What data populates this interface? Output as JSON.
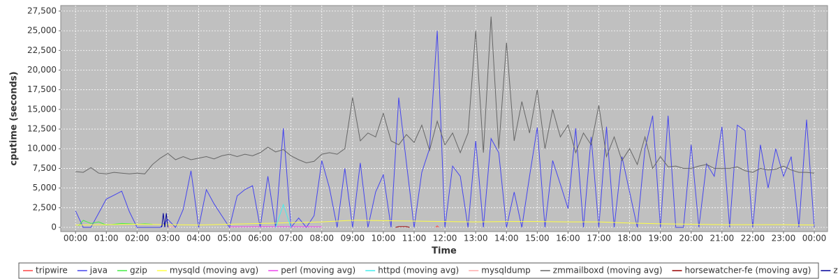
{
  "chart_data": {
    "type": "line",
    "x_label": "Time",
    "y_label": "cputime (seconds)",
    "xlim": [
      -0.48,
      24.43
    ],
    "ylim": [
      -530,
      28200
    ],
    "xticks": [
      {
        "value": 0,
        "label": "00:00"
      },
      {
        "value": 1,
        "label": "01:00"
      },
      {
        "value": 2,
        "label": "02:00"
      },
      {
        "value": 3,
        "label": "03:00"
      },
      {
        "value": 4,
        "label": "04:00"
      },
      {
        "value": 5,
        "label": "05:00"
      },
      {
        "value": 6,
        "label": "06:00"
      },
      {
        "value": 7,
        "label": "07:00"
      },
      {
        "value": 8,
        "label": "08:00"
      },
      {
        "value": 9,
        "label": "09:00"
      },
      {
        "value": 10,
        "label": "10:00"
      },
      {
        "value": 11,
        "label": "11:00"
      },
      {
        "value": 12,
        "label": "12:00"
      },
      {
        "value": 13,
        "label": "13:00"
      },
      {
        "value": 14,
        "label": "14:00"
      },
      {
        "value": 15,
        "label": "15:00"
      },
      {
        "value": 16,
        "label": "16:00"
      },
      {
        "value": 17,
        "label": "17:00"
      },
      {
        "value": 18,
        "label": "18:00"
      },
      {
        "value": 19,
        "label": "19:00"
      },
      {
        "value": 20,
        "label": "20:00"
      },
      {
        "value": 21,
        "label": "21:00"
      },
      {
        "value": 22,
        "label": "22:00"
      },
      {
        "value": 23,
        "label": "23:00"
      },
      {
        "value": 24,
        "label": "00:00"
      }
    ],
    "yticks": [
      0,
      {
        "value": 2500,
        "label": "2,500"
      },
      {
        "value": 5000,
        "label": "5,000"
      },
      {
        "value": 7500,
        "label": "7,500"
      },
      {
        "value": 10000,
        "label": "10,000"
      },
      {
        "value": 12500,
        "label": "12,500"
      },
      {
        "value": 15000,
        "label": "15,000"
      },
      {
        "value": 17500,
        "label": "17,500"
      },
      {
        "value": 20000,
        "label": "20,000"
      },
      {
        "value": 22500,
        "label": "22,500"
      },
      {
        "value": 25000,
        "label": "25,000"
      },
      {
        "value": 27500,
        "label": "27,500"
      }
    ],
    "grid": true,
    "series": [
      {
        "name": "tripwire",
        "color": "#ff4444",
        "x": [
          11.7,
          11.75,
          11.8
        ],
        "values": [
          0,
          200,
          0
        ]
      },
      {
        "name": "java",
        "color": "#4444ee",
        "x": [
          0,
          0.25,
          0.5,
          0.75,
          1,
          1.25,
          1.5,
          1.75,
          2,
          2.25,
          2.5,
          2.75,
          3,
          3.25,
          3.5,
          3.75,
          4,
          4.25,
          4.5,
          4.75,
          5,
          5.25,
          5.5,
          5.75,
          6,
          6.25,
          6.5,
          6.75,
          7,
          7.25,
          7.5,
          7.75,
          8,
          8.25,
          8.5,
          8.75,
          9,
          9.25,
          9.5,
          9.75,
          10,
          10.25,
          10.5,
          10.75,
          11,
          11.25,
          11.5,
          11.75,
          12,
          12.25,
          12.5,
          12.75,
          13,
          13.25,
          13.5,
          13.75,
          14,
          14.25,
          14.5,
          14.75,
          15,
          15.25,
          15.5,
          15.75,
          16,
          16.25,
          16.5,
          16.75,
          17,
          17.25,
          17.5,
          17.75,
          18,
          18.25,
          18.5,
          18.75,
          19,
          19.25,
          19.5,
          19.75,
          20,
          20.25,
          20.5,
          20.75,
          21,
          21.25,
          21.5,
          21.75,
          22,
          22.25,
          22.5,
          22.75,
          23,
          23.25,
          23.5,
          23.75,
          24
        ],
        "values": [
          2100,
          0,
          0,
          1800,
          3600,
          4100,
          4600,
          2000,
          0,
          0,
          0,
          0,
          1000,
          0,
          2300,
          7200,
          0,
          4800,
          3000,
          1500,
          0,
          4000,
          4800,
          5300,
          0,
          6500,
          0,
          12600,
          0,
          1200,
          0,
          1500,
          8500,
          5000,
          0,
          7500,
          0,
          8200,
          0,
          4500,
          6700,
          0,
          16500,
          8200,
          0,
          7000,
          10000,
          25000,
          0,
          7800,
          6500,
          0,
          11000,
          0,
          11300,
          9500,
          0,
          4500,
          0,
          6500,
          12700,
          0,
          8500,
          5500,
          2400,
          12600,
          0,
          11500,
          0,
          12800,
          0,
          9000,
          4500,
          0,
          10000,
          14200,
          0,
          14200,
          0,
          0,
          10500,
          0,
          8100,
          6500,
          12800,
          0,
          13000,
          12300,
          0,
          10500,
          5000,
          10000,
          6500,
          9000,
          0,
          13700,
          0
        ]
      },
      {
        "name": "gzip",
        "color": "#44ee44",
        "x": [
          0.1,
          0.25,
          0.5,
          0.75,
          1,
          1.25,
          1.5,
          1.75,
          2,
          2.25,
          2.5
        ],
        "values": [
          200,
          900,
          500,
          700,
          300,
          400,
          500,
          450,
          400,
          450,
          400
        ]
      },
      {
        "name": "mysqld (moving avg)",
        "color": "#ffff44",
        "x": [
          0,
          1,
          2,
          3,
          4,
          5,
          6,
          7,
          8,
          9,
          10,
          11,
          12,
          13,
          14,
          15,
          16,
          17,
          18,
          19,
          20,
          21,
          22,
          23,
          24
        ],
        "values": [
          300,
          350,
          400,
          350,
          300,
          400,
          500,
          600,
          700,
          900,
          850,
          800,
          750,
          700,
          750,
          750,
          700,
          700,
          550,
          450,
          400,
          350,
          350,
          350,
          300
        ]
      },
      {
        "name": "perl (moving avg)",
        "color": "#ee44ee",
        "x": [
          5,
          6,
          7,
          8
        ],
        "values": [
          80,
          100,
          90,
          80
        ]
      },
      {
        "name": "httpd (moving avg)",
        "color": "#44eeee",
        "x": [
          6.5,
          6.75,
          7
        ],
        "values": [
          0,
          2900,
          0
        ]
      },
      {
        "name": "mysqldump",
        "color": "#ffaaaa",
        "x": [
          3,
          3.1,
          3.2
        ],
        "values": [
          0,
          150,
          0
        ]
      },
      {
        "name": "zmmailboxd (moving avg)",
        "color": "#666666",
        "x": [
          0,
          0.25,
          0.5,
          0.75,
          1,
          1.25,
          1.5,
          1.75,
          2,
          2.25,
          2.5,
          2.75,
          3,
          3.25,
          3.5,
          3.75,
          4,
          4.25,
          4.5,
          4.75,
          5,
          5.25,
          5.5,
          5.75,
          6,
          6.25,
          6.5,
          6.75,
          7,
          7.25,
          7.5,
          7.75,
          8,
          8.25,
          8.5,
          8.75,
          9,
          9.25,
          9.5,
          9.75,
          10,
          10.25,
          10.5,
          10.75,
          11,
          11.25,
          11.5,
          11.75,
          12,
          12.25,
          12.5,
          12.75,
          13,
          13.25,
          13.5,
          13.75,
          14,
          14.25,
          14.5,
          14.75,
          15,
          15.25,
          15.5,
          15.75,
          16,
          16.25,
          16.5,
          16.75,
          17,
          17.25,
          17.5,
          17.75,
          18,
          18.25,
          18.5,
          18.75,
          19,
          19.25,
          19.5,
          19.75,
          20,
          20.25,
          20.5,
          20.75,
          21,
          21.25,
          21.5,
          21.75,
          22,
          22.25,
          22.5,
          22.75,
          23,
          23.25,
          23.5,
          23.75,
          24
        ],
        "values": [
          7100,
          7000,
          7600,
          6900,
          6800,
          7000,
          6900,
          6800,
          6900,
          6800,
          8000,
          8800,
          9400,
          8600,
          9000,
          8600,
          8800,
          9000,
          8700,
          9100,
          9300,
          9000,
          9300,
          9100,
          9500,
          10200,
          9600,
          9900,
          9100,
          8600,
          8200,
          8400,
          9300,
          9500,
          9300,
          10000,
          16500,
          11000,
          12000,
          11500,
          14500,
          11000,
          10500,
          11800,
          10800,
          13000,
          9800,
          13500,
          10500,
          12000,
          9500,
          12000,
          25000,
          9500,
          26800,
          10000,
          23500,
          11000,
          16000,
          12000,
          17500,
          10000,
          15000,
          11500,
          13000,
          9500,
          12000,
          10500,
          15500,
          9000,
          11500,
          8500,
          10000,
          8000,
          11500,
          7500,
          9000,
          7700,
          7800,
          7500,
          7500,
          7800,
          8000,
          7500,
          7500,
          7500,
          7700,
          7200,
          7000,
          7500,
          7300,
          7400,
          7800,
          7300,
          7000,
          7000,
          6900
        ]
      },
      {
        "name": "horsewatcher-fe (moving avg)",
        "color": "#990000",
        "x": [
          10.4,
          10.5,
          10.75,
          10.85
        ],
        "values": [
          0,
          100,
          100,
          0
        ]
      },
      {
        "name": "zmcompresslogs",
        "color": "#000099",
        "x": [
          2.8,
          2.85,
          2.9,
          2.95,
          3.0
        ],
        "values": [
          0,
          1800,
          0,
          1800,
          0
        ]
      }
    ]
  }
}
